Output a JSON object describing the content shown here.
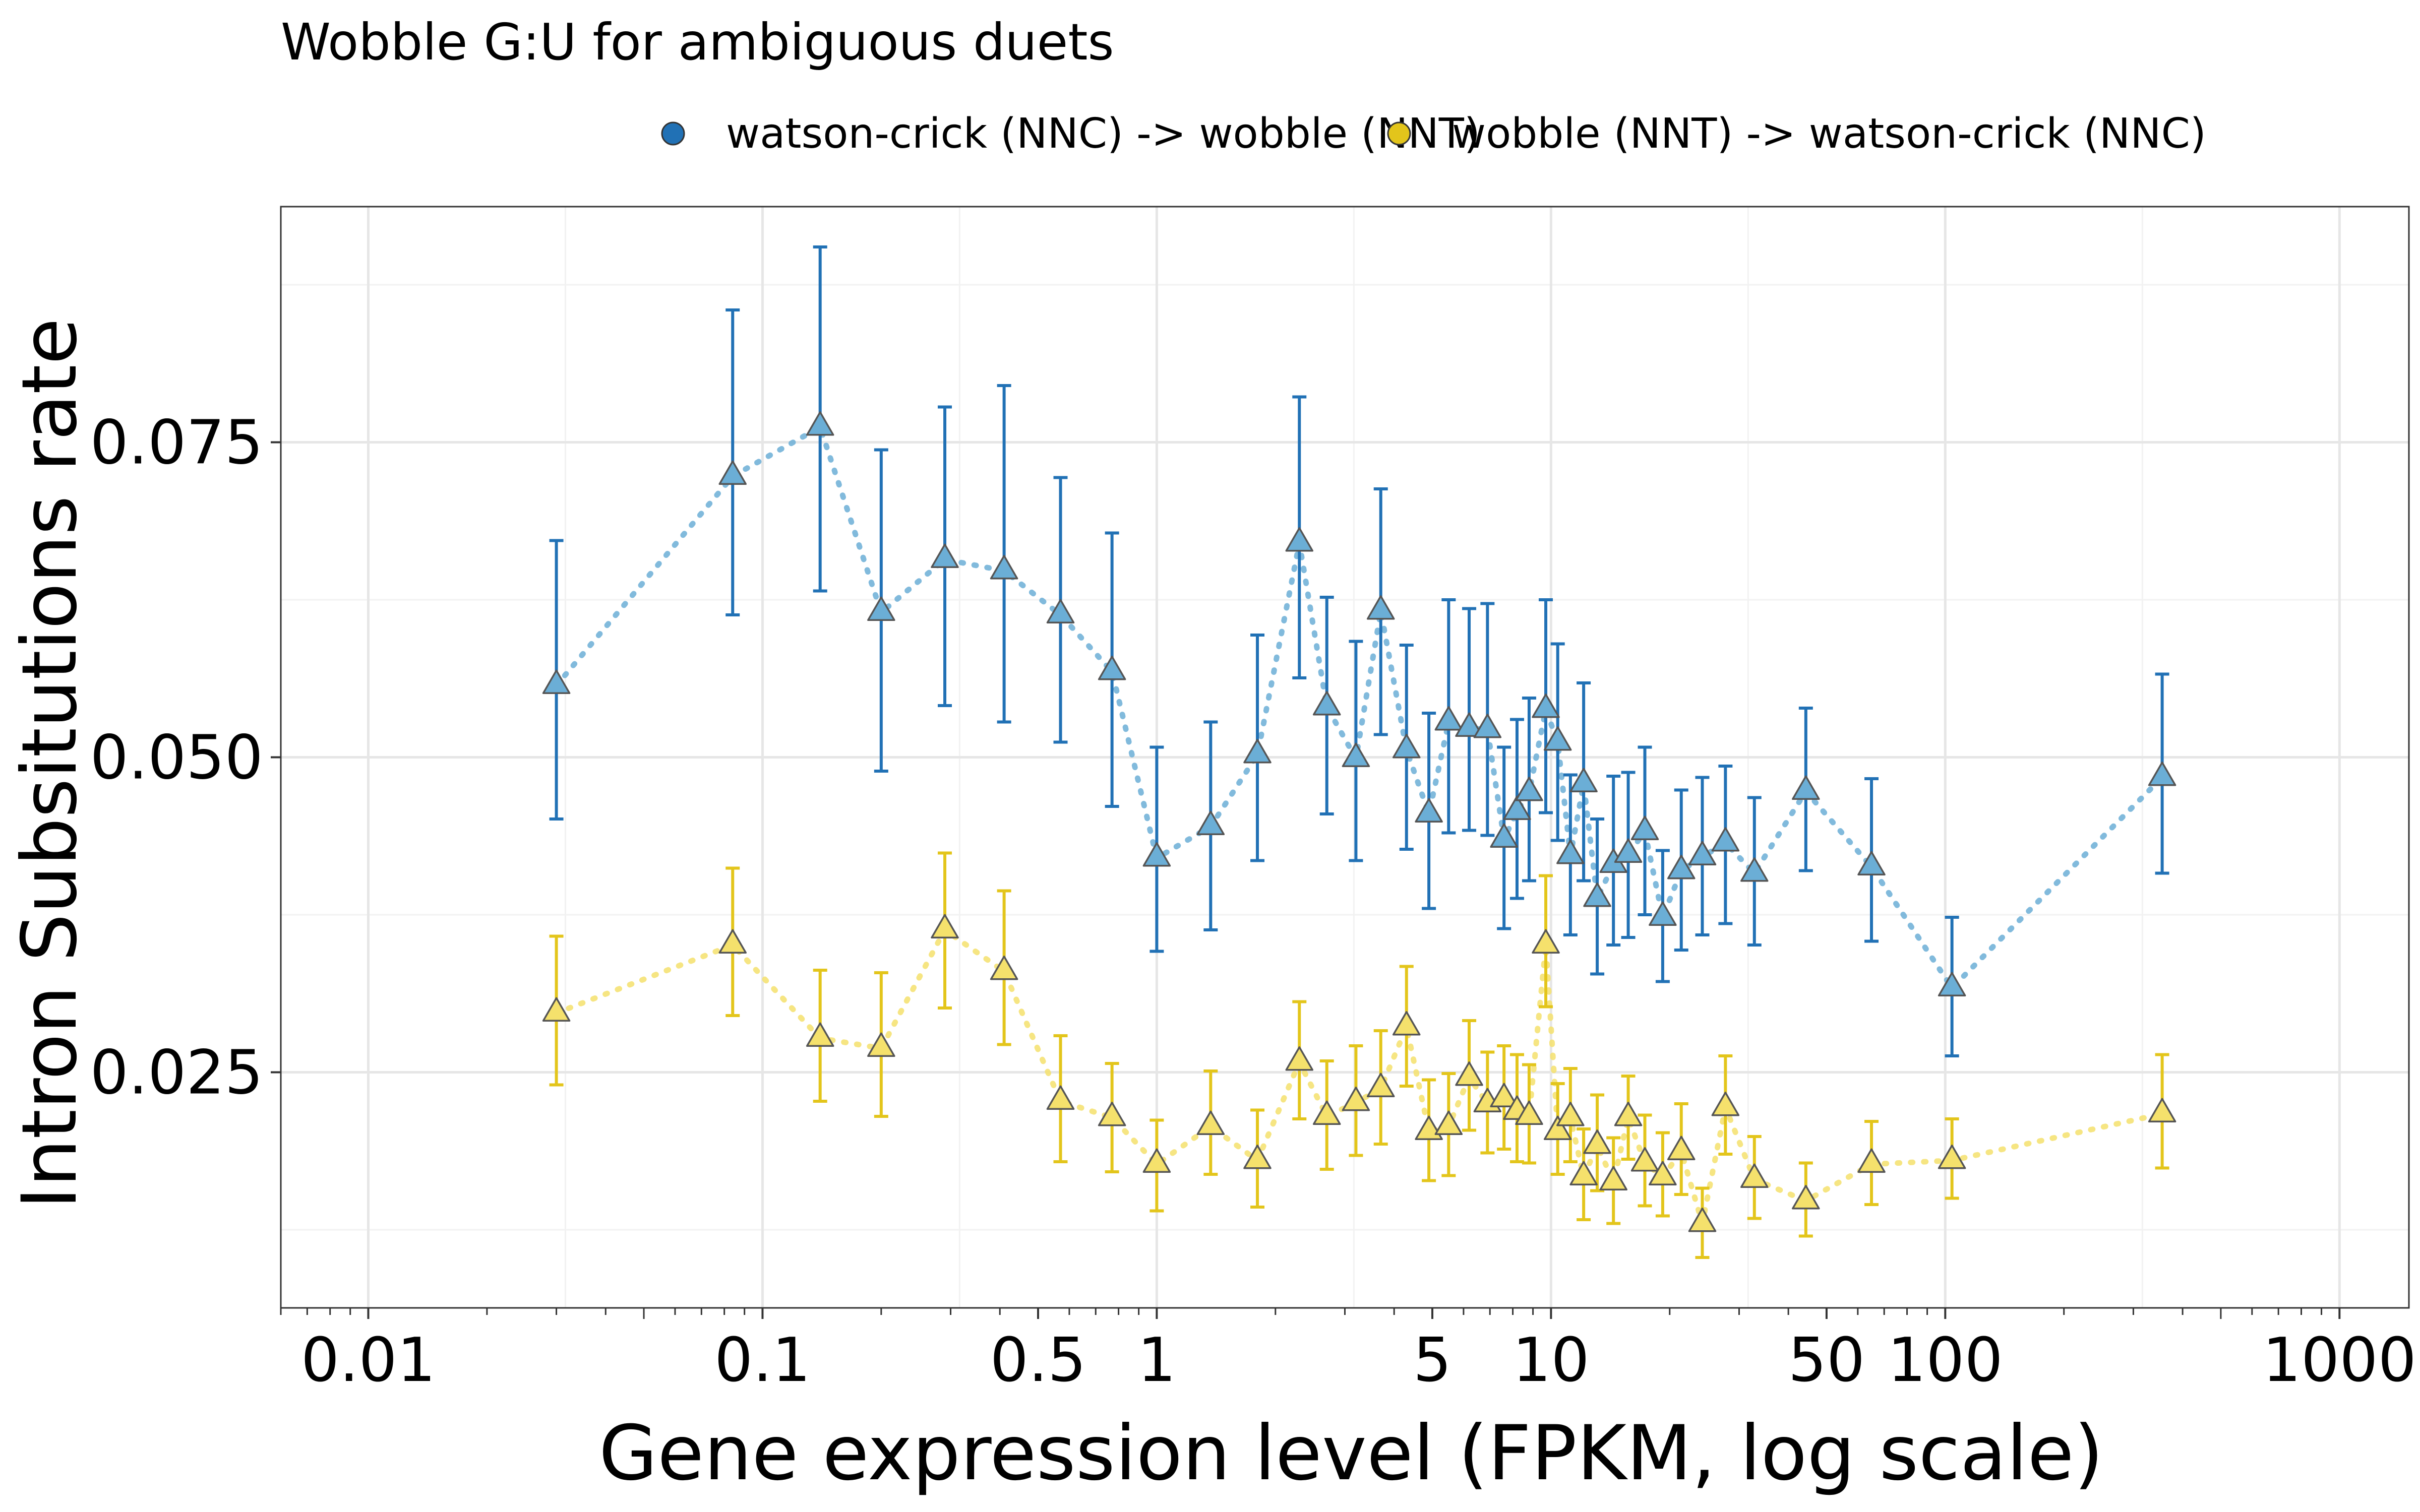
{
  "chart_data": {
    "type": "scatter",
    "title": "Wobble G:U for ambiguous duets",
    "xlabel": "Gene expression level (FPKM, log scale)",
    "ylabel": "Intron Subsitutions rate",
    "x_scale": "log",
    "xlim": [
      0.006,
      1500
    ],
    "ylim": [
      0.0063,
      0.0937
    ],
    "x_ticks": [
      0.01,
      0.1,
      0.5,
      1,
      5,
      10,
      50,
      100,
      1000
    ],
    "x_tick_labels": [
      "0.01",
      "0.1",
      "0.5",
      "1",
      "5",
      "10",
      "50",
      "100",
      "1000"
    ],
    "y_ticks": [
      0.025,
      0.05,
      0.075
    ],
    "y_tick_labels": [
      "0.025",
      "0.050",
      "0.075"
    ],
    "y_minor": [
      0.0125,
      0.0375,
      0.0625,
      0.0875
    ],
    "grid": true,
    "legend_position": "top",
    "series": [
      {
        "name": "watson-crick (NNC) -> wobble (NNT)",
        "color": "#2171b5",
        "marker_color": "#6baed6",
        "points": [
          {
            "x": 0.03,
            "y": 0.0557,
            "lo": 0.0451,
            "hi": 0.0672
          },
          {
            "x": 0.084,
            "y": 0.0723,
            "lo": 0.0613,
            "hi": 0.0855
          },
          {
            "x": 0.14,
            "y": 0.0762,
            "lo": 0.0632,
            "hi": 0.0905
          },
          {
            "x": 0.2,
            "y": 0.0615,
            "lo": 0.0489,
            "hi": 0.0744
          },
          {
            "x": 0.29,
            "y": 0.0657,
            "lo": 0.0541,
            "hi": 0.0778
          },
          {
            "x": 0.41,
            "y": 0.0648,
            "lo": 0.0528,
            "hi": 0.0795
          },
          {
            "x": 0.57,
            "y": 0.0613,
            "lo": 0.0512,
            "hi": 0.0722
          },
          {
            "x": 0.77,
            "y": 0.0568,
            "lo": 0.0461,
            "hi": 0.0678
          },
          {
            "x": 1.0,
            "y": 0.042,
            "lo": 0.0346,
            "hi": 0.0508
          },
          {
            "x": 1.37,
            "y": 0.0445,
            "lo": 0.0363,
            "hi": 0.0528
          },
          {
            "x": 1.8,
            "y": 0.0502,
            "lo": 0.0418,
            "hi": 0.0597
          },
          {
            "x": 2.3,
            "y": 0.067,
            "lo": 0.0563,
            "hi": 0.0786
          },
          {
            "x": 2.7,
            "y": 0.054,
            "lo": 0.0455,
            "hi": 0.0627
          },
          {
            "x": 3.2,
            "y": 0.0499,
            "lo": 0.0418,
            "hi": 0.0592
          },
          {
            "x": 3.7,
            "y": 0.0616,
            "lo": 0.0518,
            "hi": 0.0713
          },
          {
            "x": 4.3,
            "y": 0.0506,
            "lo": 0.0427,
            "hi": 0.0589
          },
          {
            "x": 4.9,
            "y": 0.0455,
            "lo": 0.038,
            "hi": 0.0535
          },
          {
            "x": 5.5,
            "y": 0.0528,
            "lo": 0.044,
            "hi": 0.0625
          },
          {
            "x": 6.2,
            "y": 0.0523,
            "lo": 0.0442,
            "hi": 0.0618
          },
          {
            "x": 6.9,
            "y": 0.0522,
            "lo": 0.0438,
            "hi": 0.0622
          },
          {
            "x": 7.6,
            "y": 0.0435,
            "lo": 0.0364,
            "hi": 0.0508
          },
          {
            "x": 8.2,
            "y": 0.0457,
            "lo": 0.0388,
            "hi": 0.053
          },
          {
            "x": 8.8,
            "y": 0.0472,
            "lo": 0.0402,
            "hi": 0.0547
          },
          {
            "x": 9.7,
            "y": 0.0538,
            "lo": 0.0456,
            "hi": 0.0625
          },
          {
            "x": 10.4,
            "y": 0.0512,
            "lo": 0.0434,
            "hi": 0.059
          },
          {
            "x": 11.2,
            "y": 0.0422,
            "lo": 0.0359,
            "hi": 0.0486
          },
          {
            "x": 12.1,
            "y": 0.0479,
            "lo": 0.0402,
            "hi": 0.0559
          },
          {
            "x": 13.1,
            "y": 0.0388,
            "lo": 0.0328,
            "hi": 0.0451
          },
          {
            "x": 14.4,
            "y": 0.0415,
            "lo": 0.0351,
            "hi": 0.0485
          },
          {
            "x": 15.7,
            "y": 0.0423,
            "lo": 0.0357,
            "hi": 0.0488
          },
          {
            "x": 17.3,
            "y": 0.0441,
            "lo": 0.0375,
            "hi": 0.0508
          },
          {
            "x": 19.2,
            "y": 0.0373,
            "lo": 0.0322,
            "hi": 0.0426
          },
          {
            "x": 21.4,
            "y": 0.041,
            "lo": 0.0347,
            "hi": 0.0474
          },
          {
            "x": 24.2,
            "y": 0.0421,
            "lo": 0.0359,
            "hi": 0.0484
          },
          {
            "x": 27.7,
            "y": 0.0432,
            "lo": 0.0368,
            "hi": 0.0493
          },
          {
            "x": 32.8,
            "y": 0.0408,
            "lo": 0.0351,
            "hi": 0.0468
          },
          {
            "x": 44.3,
            "y": 0.0473,
            "lo": 0.041,
            "hi": 0.0539
          },
          {
            "x": 65.0,
            "y": 0.0413,
            "lo": 0.0354,
            "hi": 0.0483
          },
          {
            "x": 104.0,
            "y": 0.0317,
            "lo": 0.0263,
            "hi": 0.0373
          },
          {
            "x": 355.0,
            "y": 0.0484,
            "lo": 0.0408,
            "hi": 0.0566
          }
        ]
      },
      {
        "name": "wobble (NNT) -> watson-crick (NNC)",
        "color": "#e3c51b",
        "marker_color": "#f5e16c",
        "points": [
          {
            "x": 0.03,
            "y": 0.0297,
            "lo": 0.024,
            "hi": 0.0358
          },
          {
            "x": 0.084,
            "y": 0.0351,
            "lo": 0.0295,
            "hi": 0.0412
          },
          {
            "x": 0.14,
            "y": 0.0277,
            "lo": 0.0227,
            "hi": 0.0331
          },
          {
            "x": 0.2,
            "y": 0.0269,
            "lo": 0.0215,
            "hi": 0.0329
          },
          {
            "x": 0.29,
            "y": 0.0363,
            "lo": 0.0301,
            "hi": 0.0424
          },
          {
            "x": 0.41,
            "y": 0.033,
            "lo": 0.0272,
            "hi": 0.0394
          },
          {
            "x": 0.57,
            "y": 0.0227,
            "lo": 0.0179,
            "hi": 0.0279
          },
          {
            "x": 0.77,
            "y": 0.0214,
            "lo": 0.0171,
            "hi": 0.0257
          },
          {
            "x": 1.0,
            "y": 0.0177,
            "lo": 0.014,
            "hi": 0.0212
          },
          {
            "x": 1.37,
            "y": 0.0207,
            "lo": 0.0169,
            "hi": 0.0251
          },
          {
            "x": 1.8,
            "y": 0.018,
            "lo": 0.0143,
            "hi": 0.022
          },
          {
            "x": 2.3,
            "y": 0.0258,
            "lo": 0.0213,
            "hi": 0.0306
          },
          {
            "x": 2.7,
            "y": 0.0215,
            "lo": 0.0173,
            "hi": 0.0259
          },
          {
            "x": 3.2,
            "y": 0.0226,
            "lo": 0.0184,
            "hi": 0.0271
          },
          {
            "x": 3.7,
            "y": 0.0237,
            "lo": 0.0193,
            "hi": 0.0283
          },
          {
            "x": 4.3,
            "y": 0.0286,
            "lo": 0.0239,
            "hi": 0.0334
          },
          {
            "x": 4.9,
            "y": 0.0203,
            "lo": 0.0164,
            "hi": 0.0244
          },
          {
            "x": 5.5,
            "y": 0.0207,
            "lo": 0.0168,
            "hi": 0.0249
          },
          {
            "x": 6.2,
            "y": 0.0246,
            "lo": 0.0204,
            "hi": 0.0291
          },
          {
            "x": 6.9,
            "y": 0.0225,
            "lo": 0.0186,
            "hi": 0.0266
          },
          {
            "x": 7.6,
            "y": 0.0229,
            "lo": 0.0189,
            "hi": 0.0271
          },
          {
            "x": 8.2,
            "y": 0.0219,
            "lo": 0.0179,
            "hi": 0.0264
          },
          {
            "x": 8.8,
            "y": 0.0215,
            "lo": 0.0178,
            "hi": 0.0256
          },
          {
            "x": 9.7,
            "y": 0.0351,
            "lo": 0.0302,
            "hi": 0.0406
          },
          {
            "x": 10.4,
            "y": 0.0203,
            "lo": 0.0169,
            "hi": 0.0241
          },
          {
            "x": 11.2,
            "y": 0.0214,
            "lo": 0.0179,
            "hi": 0.0253
          },
          {
            "x": 12.1,
            "y": 0.0167,
            "lo": 0.0133,
            "hi": 0.0205
          },
          {
            "x": 13.1,
            "y": 0.0192,
            "lo": 0.0156,
            "hi": 0.0232
          },
          {
            "x": 14.4,
            "y": 0.0163,
            "lo": 0.013,
            "hi": 0.0198
          },
          {
            "x": 15.7,
            "y": 0.0214,
            "lo": 0.0181,
            "hi": 0.0247
          },
          {
            "x": 17.3,
            "y": 0.0178,
            "lo": 0.0144,
            "hi": 0.0216
          },
          {
            "x": 19.2,
            "y": 0.0167,
            "lo": 0.0136,
            "hi": 0.0202
          },
          {
            "x": 21.4,
            "y": 0.0187,
            "lo": 0.0153,
            "hi": 0.0225
          },
          {
            "x": 24.2,
            "y": 0.013,
            "lo": 0.0103,
            "hi": 0.0158
          },
          {
            "x": 27.7,
            "y": 0.0222,
            "lo": 0.0185,
            "hi": 0.0263
          },
          {
            "x": 32.8,
            "y": 0.0165,
            "lo": 0.0134,
            "hi": 0.0199
          },
          {
            "x": 44.3,
            "y": 0.0148,
            "lo": 0.012,
            "hi": 0.0178
          },
          {
            "x": 65.0,
            "y": 0.0177,
            "lo": 0.0145,
            "hi": 0.0211
          },
          {
            "x": 104.0,
            "y": 0.018,
            "lo": 0.015,
            "hi": 0.0213
          },
          {
            "x": 355.0,
            "y": 0.0217,
            "lo": 0.0174,
            "hi": 0.0264
          }
        ]
      }
    ]
  }
}
